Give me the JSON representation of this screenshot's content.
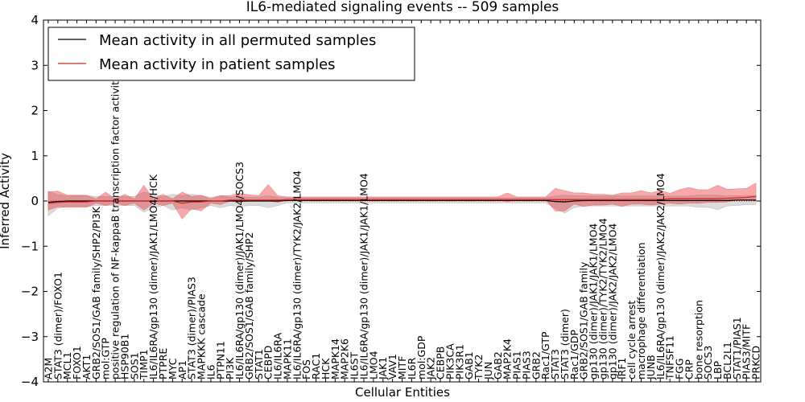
{
  "chart_data": {
    "type": "line",
    "title": "IL6-mediated signaling events -- 509 samples",
    "xlabel": "Cellular Entities",
    "ylabel": "Inferred Activity",
    "ylim": [
      -4,
      4
    ],
    "yticks": [
      -4,
      -3,
      -2,
      -1,
      0,
      1,
      2,
      3,
      4
    ],
    "categories": [
      "A2M",
      "STAT3 (dimer)/FOXO1",
      "MCL1",
      "FOXO1",
      "AKT1",
      "GRB2/SOS1/GAB family/SHP2/PI3K",
      "mol:GTP",
      "positive regulation of NF-kappaB transcription factor activity",
      "HSP90B1",
      "SOS1",
      "TIMP1",
      "IL6/IL6RA/gp130 (dimer)/JAK1/LMO4/HCK",
      "PTPRE",
      "MYC",
      "AP1",
      "STAT3 (dimer)/PIAS3",
      "MAPKKK cascade",
      "IL6",
      "PTPN11",
      "PI3K",
      "IL6/IL6RA/gp130 (dimer)/JAK1/LMO4/SOCS3",
      "GRB2/SOS1/GAB family/SHP2",
      "STAT1",
      "CEBPD",
      "IL6/IL6RA",
      "MAPK11",
      "IL6/IL6RA/gp130 (dimer)/TYK2/JAK2/LMO4",
      "FOS",
      "RAC1",
      "HCK",
      "MAPK14",
      "MAP2K6",
      "IL6ST",
      "IL6/IL6RA/gp130 (dimer)/JAK1/JAK1/LMO4",
      "LMO4",
      "JAK1",
      "VAV1",
      "MITF",
      "IL6R",
      "mol:GDP",
      "JAK2",
      "CEBPB",
      "PIK3CA",
      "PIK3R1",
      "GAB1",
      "TYK2",
      "JUN",
      "GAB2",
      "MAP2K4",
      "PIAS1",
      "PIAS3",
      "GRB2",
      "Rac1/GTP",
      "STAT3",
      "STAT3 (dimer)",
      "Rac1/GDP",
      "GRB2/SOS1/GAB family",
      "gp130 (dimer)/JAK1/JAK1/LMO4",
      "gp130 (dimer)/TYK2/TYK2/LMO4",
      "gp130 (dimer)/JAK2/JAK2/LMO4",
      "IRF1",
      "cell cycle arrest",
      "macrophage differentiation",
      "JUNB",
      "IL6/IL6RA/gp130 (dimer)/JAK2/JAK2/LMO4",
      "TNFSF11",
      "FGG",
      "CRP",
      "bone resorption",
      "SOCS3",
      "LBP",
      "BCL2L1",
      "STAT1/PIAS1",
      "PIAS3/MITF",
      "PRKCD"
    ],
    "series": [
      {
        "name": "Mean activity in all permuted samples",
        "color": "#000000",
        "values": [
          -0.03,
          -0.01,
          0,
          0,
          0,
          0,
          0,
          0,
          0,
          0,
          0,
          0,
          0,
          0,
          0,
          0,
          0,
          0,
          0,
          0,
          0,
          0,
          0,
          0,
          0,
          0.01,
          0.01,
          0.01,
          0.01,
          0.01,
          0.01,
          0.01,
          0.01,
          0.01,
          0.01,
          0.01,
          0.01,
          0.01,
          0.01,
          0.01,
          0.01,
          0.01,
          0.01,
          0.01,
          0.01,
          0.01,
          0.01,
          0.01,
          0.01,
          0.01,
          0.01,
          0.01,
          0.01,
          -0.01,
          -0.02,
          0,
          0.01,
          0.01,
          0.01,
          0.01,
          0.01,
          0.01,
          0.01,
          0.01,
          0.01,
          0.01,
          0.01,
          0.01,
          0.01,
          0.01,
          0.01,
          0.01,
          0.02,
          0.02,
          0.02
        ],
        "band_lower": [
          -0.3,
          -0.15,
          -0.12,
          -0.12,
          -0.12,
          -0.1,
          -0.1,
          -0.1,
          -0.1,
          -0.1,
          -0.25,
          -0.15,
          -0.1,
          -0.2,
          -0.15,
          -0.2,
          -0.15,
          -0.1,
          -0.15,
          -0.1,
          -0.12,
          -0.1,
          -0.1,
          -0.15,
          -0.1,
          -0.05,
          -0.05,
          -0.05,
          -0.05,
          -0.05,
          -0.05,
          -0.05,
          -0.05,
          -0.05,
          -0.05,
          -0.05,
          -0.05,
          -0.05,
          -0.05,
          -0.05,
          -0.05,
          -0.05,
          -0.05,
          -0.05,
          -0.05,
          -0.05,
          -0.05,
          -0.05,
          -0.05,
          -0.05,
          -0.05,
          -0.05,
          -0.05,
          -0.15,
          -0.25,
          -0.15,
          -0.12,
          -0.12,
          -0.12,
          -0.12,
          -0.12,
          -0.12,
          -0.12,
          -0.12,
          -0.12,
          -0.12,
          -0.12,
          -0.12,
          -0.15,
          -0.15,
          -0.2,
          -0.12,
          -0.12,
          -0.1,
          -0.1
        ],
        "band_upper": [
          0.25,
          0.15,
          0.12,
          0.12,
          0.12,
          0.1,
          0.1,
          0.1,
          0.1,
          0.1,
          0.2,
          0.15,
          0.1,
          0.15,
          0.12,
          0.15,
          0.12,
          0.08,
          0.12,
          0.08,
          0.1,
          0.08,
          0.08,
          0.12,
          0.08,
          0.06,
          0.06,
          0.06,
          0.06,
          0.06,
          0.06,
          0.06,
          0.06,
          0.06,
          0.06,
          0.06,
          0.06,
          0.06,
          0.06,
          0.06,
          0.06,
          0.06,
          0.06,
          0.06,
          0.06,
          0.06,
          0.06,
          0.06,
          0.06,
          0.06,
          0.06,
          0.06,
          0.06,
          0.12,
          0.15,
          0.12,
          0.1,
          0.1,
          0.1,
          0.1,
          0.1,
          0.1,
          0.1,
          0.1,
          0.1,
          0.1,
          0.1,
          0.1,
          0.12,
          0.12,
          0.12,
          0.1,
          0.1,
          0.1,
          0.1
        ]
      },
      {
        "name": "Mean activity in patient samples",
        "color": "#d62728",
        "values": [
          -0.05,
          -0.03,
          -0.02,
          -0.02,
          -0.02,
          0,
          0,
          0,
          0,
          0,
          0,
          0,
          0,
          0,
          -0.05,
          -0.02,
          -0.02,
          0,
          0,
          0.02,
          0.02,
          0.02,
          0.02,
          0.02,
          0.02,
          0.03,
          0.03,
          0.03,
          0.03,
          0.03,
          0.03,
          0.03,
          0.03,
          0.03,
          0.03,
          0.03,
          0.03,
          0.03,
          0.03,
          0.03,
          0.03,
          0.03,
          0.03,
          0.03,
          0.03,
          0.03,
          0.03,
          0.03,
          0.03,
          0.03,
          0.03,
          0.03,
          0.03,
          0.03,
          0.03,
          0.03,
          0.03,
          0.03,
          0.03,
          0.03,
          0.03,
          0.03,
          0.03,
          0.03,
          0.03,
          0.05,
          0.05,
          0.05,
          0.05,
          0.05,
          0.05,
          0.06,
          0.07,
          0.08,
          0.1
        ],
        "band_lower": [
          -0.15,
          -0.1,
          -0.12,
          -0.12,
          -0.12,
          -0.05,
          -0.1,
          -0.05,
          -0.1,
          -0.05,
          -0.2,
          -0.05,
          -0.1,
          -0.05,
          -0.35,
          -0.15,
          -0.2,
          -0.05,
          -0.08,
          -0.02,
          -0.05,
          -0.02,
          -0.02,
          -0.02,
          -0.05,
          0,
          0,
          0,
          0,
          0,
          0,
          0,
          0,
          0,
          0,
          0,
          0,
          0,
          0,
          0,
          0,
          0,
          0,
          0,
          0,
          0,
          0,
          0,
          -0.05,
          0,
          0,
          0,
          0,
          -0.25,
          -0.25,
          -0.1,
          -0.15,
          -0.12,
          -0.12,
          -0.1,
          -0.15,
          -0.1,
          -0.1,
          -0.12,
          -0.1,
          -0.1,
          -0.12,
          -0.1,
          -0.1,
          -0.08,
          -0.08,
          -0.08,
          -0.05,
          -0.05,
          -0.1
        ],
        "band_upper": [
          0.25,
          0.25,
          0.15,
          0.15,
          0.15,
          0.05,
          0.2,
          0.05,
          0.15,
          0.05,
          0.35,
          0.05,
          0.15,
          0.05,
          0.25,
          0.12,
          0.15,
          0.05,
          0.12,
          0.1,
          0.15,
          0.12,
          0.1,
          0.35,
          0.1,
          0.06,
          0.06,
          0.06,
          0.06,
          0.06,
          0.06,
          0.06,
          0.06,
          0.06,
          0.06,
          0.06,
          0.06,
          0.06,
          0.06,
          0.06,
          0.06,
          0.06,
          0.06,
          0.06,
          0.06,
          0.06,
          0.06,
          0.06,
          0.15,
          0.06,
          0.06,
          0.06,
          0.06,
          0.25,
          0.2,
          0.15,
          0.15,
          0.12,
          0.12,
          0.1,
          0.15,
          0.15,
          0.2,
          0.15,
          0.2,
          0.12,
          0.2,
          0.25,
          0.2,
          0.2,
          0.3,
          0.2,
          0.2,
          0.2,
          0.3
        ]
      }
    ],
    "reference_line": {
      "y": 0,
      "style": "dotted",
      "color": "#d62728"
    },
    "legend": {
      "placement": "top-left"
    }
  }
}
